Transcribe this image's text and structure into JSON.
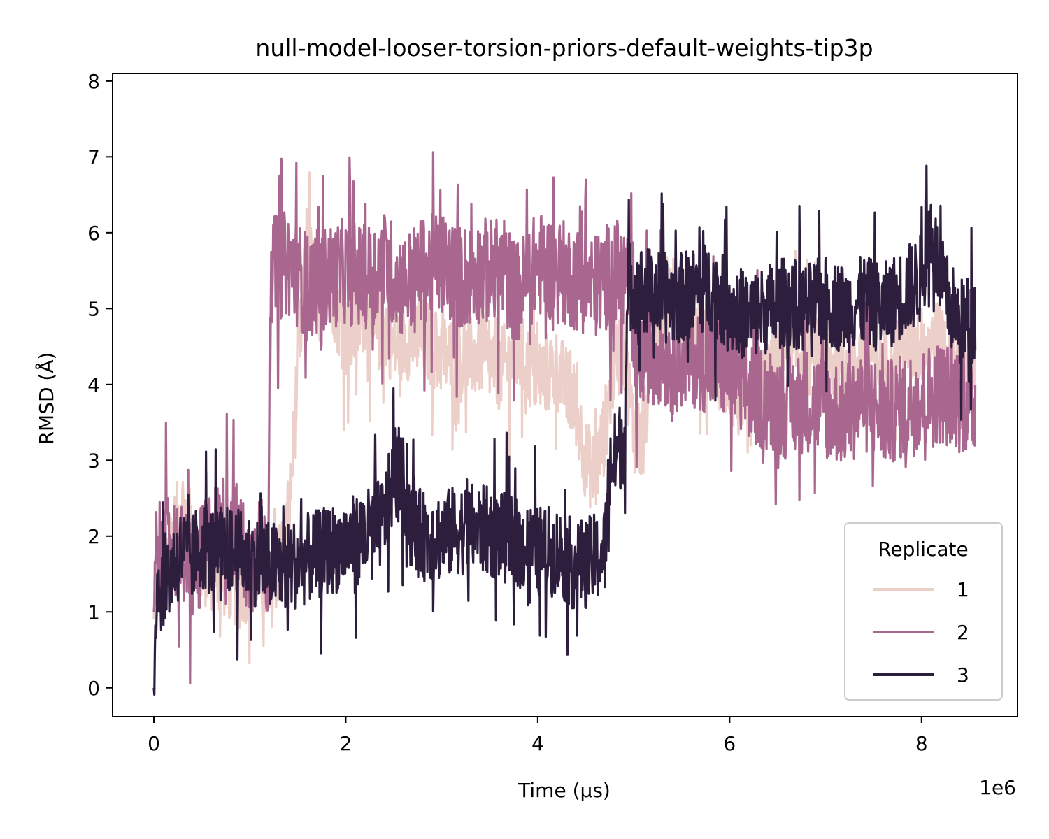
{
  "chart_data": {
    "type": "line",
    "title": "null-model-looser-torsion-priors-default-weights-tip3p",
    "xlabel": "Time (µs)",
    "ylabel": "RMSD (Å)",
    "x_offset_label": "1e6",
    "xlim": [
      -0.43,
      9.0
    ],
    "ylim": [
      -0.38,
      8.1
    ],
    "x_unit_multiplier": 1000000,
    "xticks": [
      0,
      2,
      4,
      6,
      8
    ],
    "yticks": [
      0,
      1,
      2,
      3,
      4,
      5,
      6,
      7,
      8
    ],
    "grid": false,
    "legend": {
      "title": "Replicate",
      "position": "lower-right"
    },
    "series": [
      {
        "name": "1",
        "color": "#eccfc8",
        "points": [
          [
            0.0,
            0.9
          ],
          [
            0.02,
            1.5
          ],
          [
            0.1,
            1.6
          ],
          [
            0.2,
            2.0
          ],
          [
            0.3,
            2.4
          ],
          [
            0.4,
            2.0
          ],
          [
            0.5,
            1.6
          ],
          [
            0.7,
            1.5
          ],
          [
            0.9,
            1.3
          ],
          [
            1.1,
            1.6
          ],
          [
            1.2,
            1.2
          ],
          [
            1.4,
            2.1
          ],
          [
            1.5,
            4.2
          ],
          [
            1.6,
            5.8
          ],
          [
            1.7,
            5.2
          ],
          [
            1.8,
            5.6
          ],
          [
            1.9,
            5.0
          ],
          [
            2.0,
            4.6
          ],
          [
            2.1,
            4.7
          ],
          [
            2.2,
            5.0
          ],
          [
            2.3,
            4.6
          ],
          [
            2.4,
            4.8
          ],
          [
            2.5,
            4.5
          ],
          [
            2.6,
            4.6
          ],
          [
            2.8,
            4.6
          ],
          [
            3.0,
            4.4
          ],
          [
            3.2,
            4.3
          ],
          [
            3.4,
            4.4
          ],
          [
            3.6,
            4.2
          ],
          [
            3.8,
            4.4
          ],
          [
            4.0,
            4.1
          ],
          [
            4.2,
            4.2
          ],
          [
            4.4,
            3.7
          ],
          [
            4.5,
            3.0
          ],
          [
            4.6,
            2.8
          ],
          [
            4.7,
            3.4
          ],
          [
            4.8,
            4.3
          ],
          [
            4.9,
            4.5
          ],
          [
            5.0,
            3.4
          ],
          [
            5.1,
            3.2
          ],
          [
            5.2,
            4.7
          ],
          [
            5.4,
            5.3
          ],
          [
            5.6,
            4.6
          ],
          [
            5.8,
            4.4
          ],
          [
            6.0,
            4.0
          ],
          [
            6.2,
            3.6
          ],
          [
            6.4,
            4.1
          ],
          [
            6.6,
            4.5
          ],
          [
            6.8,
            4.4
          ],
          [
            7.0,
            4.3
          ],
          [
            7.2,
            4.2
          ],
          [
            7.4,
            4.4
          ],
          [
            7.6,
            4.3
          ],
          [
            7.8,
            4.5
          ],
          [
            8.0,
            4.5
          ],
          [
            8.2,
            4.6
          ],
          [
            8.4,
            4.2
          ],
          [
            8.56,
            4.3
          ]
        ]
      },
      {
        "name": "2",
        "color": "#a9678f",
        "points": [
          [
            0.0,
            1.0
          ],
          [
            0.02,
            1.7
          ],
          [
            0.1,
            1.8
          ],
          [
            0.2,
            1.9
          ],
          [
            0.3,
            1.7
          ],
          [
            0.4,
            1.5
          ],
          [
            0.5,
            1.7
          ],
          [
            0.6,
            2.0
          ],
          [
            0.8,
            2.2
          ],
          [
            1.0,
            1.6
          ],
          [
            1.1,
            1.9
          ],
          [
            1.19,
            1.6
          ],
          [
            1.21,
            5.5
          ],
          [
            1.4,
            5.6
          ],
          [
            1.6,
            5.3
          ],
          [
            1.8,
            5.4
          ],
          [
            2.0,
            5.5
          ],
          [
            2.2,
            5.4
          ],
          [
            2.4,
            5.6
          ],
          [
            2.6,
            5.3
          ],
          [
            2.8,
            5.5
          ],
          [
            3.0,
            5.6
          ],
          [
            3.2,
            5.4
          ],
          [
            3.4,
            5.5
          ],
          [
            3.6,
            5.5
          ],
          [
            3.8,
            5.2
          ],
          [
            4.0,
            5.6
          ],
          [
            4.2,
            5.5
          ],
          [
            4.4,
            5.4
          ],
          [
            4.6,
            5.3
          ],
          [
            4.8,
            5.5
          ],
          [
            4.95,
            5.4
          ],
          [
            5.0,
            4.3
          ],
          [
            5.2,
            4.5
          ],
          [
            5.4,
            4.3
          ],
          [
            5.6,
            4.4
          ],
          [
            5.8,
            4.3
          ],
          [
            6.0,
            4.2
          ],
          [
            6.2,
            3.9
          ],
          [
            6.4,
            3.8
          ],
          [
            6.6,
            3.7
          ],
          [
            6.8,
            3.8
          ],
          [
            7.0,
            3.7
          ],
          [
            7.2,
            3.6
          ],
          [
            7.4,
            3.8
          ],
          [
            7.6,
            3.6
          ],
          [
            7.8,
            3.7
          ],
          [
            8.0,
            3.8
          ],
          [
            8.2,
            3.9
          ],
          [
            8.4,
            3.8
          ],
          [
            8.56,
            3.7
          ]
        ]
      },
      {
        "name": "3",
        "color": "#2d1e3e",
        "points": [
          [
            0.0,
            0.0
          ],
          [
            0.02,
            1.2
          ],
          [
            0.1,
            1.4
          ],
          [
            0.2,
            1.6
          ],
          [
            0.3,
            1.8
          ],
          [
            0.4,
            1.7
          ],
          [
            0.5,
            1.9
          ],
          [
            0.6,
            1.8
          ],
          [
            0.8,
            1.8
          ],
          [
            1.0,
            1.7
          ],
          [
            1.2,
            1.6
          ],
          [
            1.4,
            1.6
          ],
          [
            1.6,
            1.7
          ],
          [
            1.8,
            1.8
          ],
          [
            2.0,
            1.9
          ],
          [
            2.2,
            2.0
          ],
          [
            2.4,
            2.2
          ],
          [
            2.5,
            2.8
          ],
          [
            2.6,
            2.7
          ],
          [
            2.7,
            2.1
          ],
          [
            2.8,
            2.0
          ],
          [
            3.0,
            2.0
          ],
          [
            3.2,
            2.1
          ],
          [
            3.4,
            2.1
          ],
          [
            3.6,
            2.0
          ],
          [
            3.8,
            1.9
          ],
          [
            4.0,
            1.8
          ],
          [
            4.2,
            1.8
          ],
          [
            4.4,
            1.6
          ],
          [
            4.6,
            1.7
          ],
          [
            4.7,
            1.8
          ],
          [
            4.75,
            2.9
          ],
          [
            4.9,
            3.3
          ],
          [
            4.95,
            5.3
          ],
          [
            5.2,
            5.2
          ],
          [
            5.4,
            5.1
          ],
          [
            5.6,
            5.2
          ],
          [
            5.8,
            5.3
          ],
          [
            6.0,
            5.0
          ],
          [
            6.2,
            4.9
          ],
          [
            6.4,
            5.0
          ],
          [
            6.6,
            5.1
          ],
          [
            6.8,
            5.0
          ],
          [
            7.0,
            5.1
          ],
          [
            7.2,
            5.0
          ],
          [
            7.4,
            5.1
          ],
          [
            7.6,
            5.0
          ],
          [
            7.8,
            5.2
          ],
          [
            8.0,
            5.4
          ],
          [
            8.1,
            6.1
          ],
          [
            8.2,
            5.3
          ],
          [
            8.4,
            4.8
          ],
          [
            8.56,
            4.9
          ]
        ]
      }
    ]
  }
}
